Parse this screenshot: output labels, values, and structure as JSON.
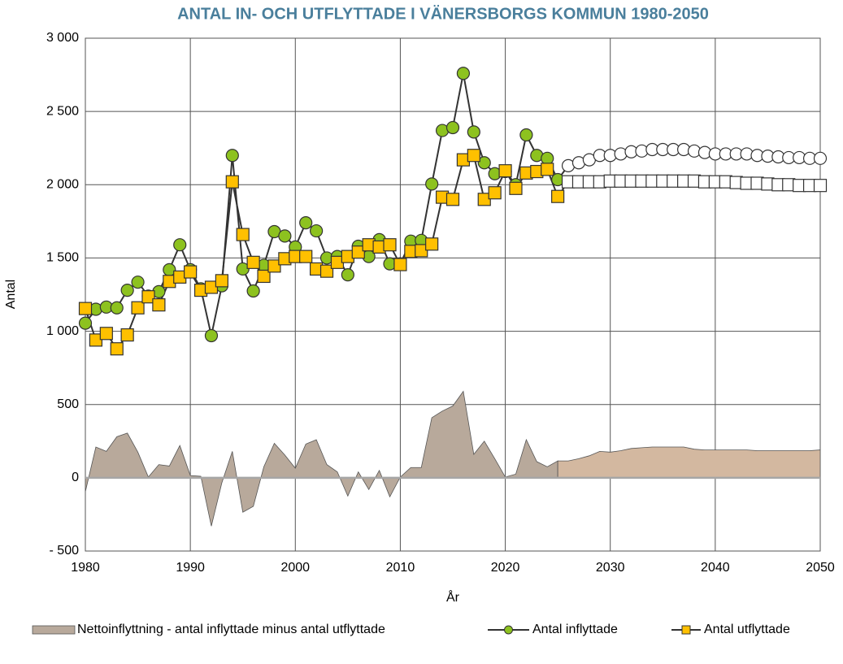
{
  "chart_data": {
    "type": "line",
    "title": "ANTAL IN- OCH UTFLYTTADE I VÄNERSBORGS KOMMUN 1980-2050",
    "x_label": "År",
    "y_label": "Antal",
    "x": [
      1980,
      1981,
      1982,
      1983,
      1984,
      1985,
      1986,
      1987,
      1988,
      1989,
      1990,
      1991,
      1992,
      1993,
      1994,
      1995,
      1996,
      1997,
      1998,
      1999,
      2000,
      2001,
      2002,
      2003,
      2004,
      2005,
      2006,
      2007,
      2008,
      2009,
      2010,
      2011,
      2012,
      2013,
      2014,
      2015,
      2016,
      2017,
      2018,
      2019,
      2020,
      2021,
      2022,
      2023,
      2024,
      2025,
      2026,
      2027,
      2028,
      2029,
      2030,
      2031,
      2032,
      2033,
      2034,
      2035,
      2036,
      2037,
      2038,
      2039,
      2040,
      2041,
      2042,
      2043,
      2044,
      2045,
      2046,
      2047,
      2048,
      2049,
      2050
    ],
    "xlim": [
      1980,
      2050
    ],
    "xticks": [
      1980,
      1990,
      2000,
      2010,
      2020,
      2030,
      2040,
      2050
    ],
    "ylim": [
      -500,
      3000
    ],
    "yticks": [
      {
        "value": -500,
        "label": "- 500"
      },
      0,
      500,
      {
        "value": 1000,
        "label": "1 000"
      },
      {
        "value": 1500,
        "label": "1 500"
      },
      {
        "value": 2000,
        "label": "2 000"
      },
      {
        "value": 2500,
        "label": "2 500"
      },
      {
        "value": 3000,
        "label": "3 000"
      }
    ],
    "grid": true,
    "legend": "bottom",
    "forecast_from": 2026,
    "series": [
      {
        "name": "Nettoinflyttning - antal inflyttade minus antal utflyttade",
        "type": "area",
        "color": "#b8a99b",
        "forecast_color": "#d3b8a0",
        "values": [
          -95,
          210,
          180,
          280,
          305,
          175,
          5,
          90,
          80,
          220,
          15,
          10,
          -330,
          -35,
          180,
          -235,
          -195,
          75,
          235,
          155,
          65,
          230,
          260,
          90,
          40,
          -125,
          40,
          -80,
          50,
          -130,
          5,
          70,
          70,
          410,
          455,
          490,
          590,
          160,
          250,
          130,
          5,
          25,
          260,
          110,
          75,
          115,
          115,
          130,
          150,
          180,
          175,
          185,
          200,
          205,
          210,
          210,
          210,
          210,
          195,
          190,
          190,
          190,
          190,
          190,
          185,
          185,
          185,
          185,
          185,
          185,
          190
        ]
      },
      {
        "name": "Antal inflyttade",
        "marker": "circle",
        "color": "#8dc21f",
        "forecast_color": "#ffffff",
        "values": [
          1055,
          1150,
          1165,
          1160,
          1280,
          1335,
          1240,
          1270,
          1420,
          1590,
          1420,
          1290,
          970,
          1310,
          2200,
          1425,
          1275,
          1450,
          1680,
          1650,
          1575,
          1740,
          1685,
          1500,
          1510,
          1385,
          1580,
          1510,
          1625,
          1460,
          1460,
          1615,
          1620,
          2005,
          2370,
          2390,
          2760,
          2360,
          2150,
          2075,
          2090,
          2000,
          2340,
          2200,
          2180,
          2035,
          2130,
          2150,
          2170,
          2200,
          2200,
          2210,
          2225,
          2230,
          2240,
          2240,
          2240,
          2240,
          2230,
          2220,
          2210,
          2210,
          2210,
          2210,
          2200,
          2195,
          2190,
          2185,
          2185,
          2180,
          2180
        ]
      },
      {
        "name": "Antal utflyttade",
        "marker": "square",
        "color": "#ffc000",
        "forecast_color": "#ffffff",
        "values": [
          1155,
          940,
          985,
          880,
          975,
          1160,
          1235,
          1180,
          1340,
          1370,
          1405,
          1280,
          1300,
          1345,
          2020,
          1660,
          1470,
          1375,
          1445,
          1495,
          1510,
          1510,
          1425,
          1410,
          1470,
          1510,
          1540,
          1590,
          1575,
          1590,
          1455,
          1545,
          1550,
          1595,
          1915,
          1900,
          2170,
          2200,
          1900,
          1945,
          2095,
          1975,
          2080,
          2090,
          2105,
          1920,
          2020,
          2020,
          2020,
          2020,
          2025,
          2025,
          2025,
          2025,
          2025,
          2025,
          2025,
          2025,
          2025,
          2020,
          2020,
          2020,
          2015,
          2010,
          2010,
          2005,
          2000,
          2000,
          1995,
          1995,
          1995
        ]
      }
    ]
  }
}
